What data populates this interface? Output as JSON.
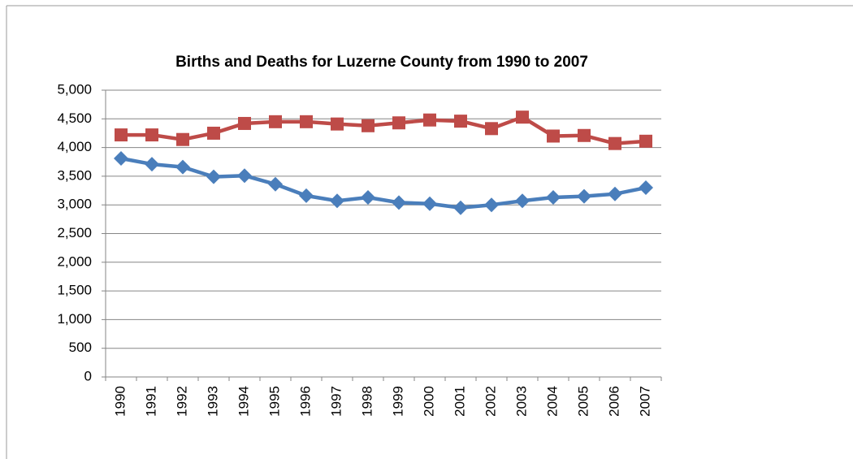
{
  "chart_data": {
    "type": "line",
    "title": "Births and Deaths for Luzerne County from 1990 to 2007",
    "categories": [
      "1990",
      "1991",
      "1992",
      "1993",
      "1994",
      "1995",
      "1996",
      "1997",
      "1998",
      "1999",
      "2000",
      "2001",
      "2002",
      "2003",
      "2004",
      "2005",
      "2006",
      "2007"
    ],
    "series": [
      {
        "color": "#4a7ebb",
        "marker": "diamond",
        "values": [
          3810,
          3710,
          3660,
          3490,
          3510,
          3360,
          3160,
          3070,
          3130,
          3040,
          3020,
          2950,
          3000,
          3070,
          3130,
          3150,
          3190,
          3300
        ]
      },
      {
        "color": "#be4b48",
        "marker": "square",
        "values": [
          4220,
          4220,
          4140,
          4250,
          4420,
          4450,
          4450,
          4410,
          4380,
          4430,
          4480,
          4460,
          4330,
          4530,
          4200,
          4210,
          4070,
          4110
        ]
      }
    ],
    "ylim": [
      0,
      5000
    ],
    "yticks": [
      0,
      500,
      {
        "value": 1000,
        "label": "1,000"
      },
      {
        "value": 1500,
        "label": "1,500"
      },
      {
        "value": 2000,
        "label": "2,000"
      },
      {
        "value": 2500,
        "label": "2,500"
      },
      {
        "value": 3000,
        "label": "3,000"
      },
      {
        "value": 3500,
        "label": "3,500"
      },
      {
        "value": 4000,
        "label": "4,000"
      },
      {
        "value": 4500,
        "label": "4,500"
      },
      {
        "value": 5000,
        "label": "5,000"
      }
    ],
    "grid": true
  }
}
